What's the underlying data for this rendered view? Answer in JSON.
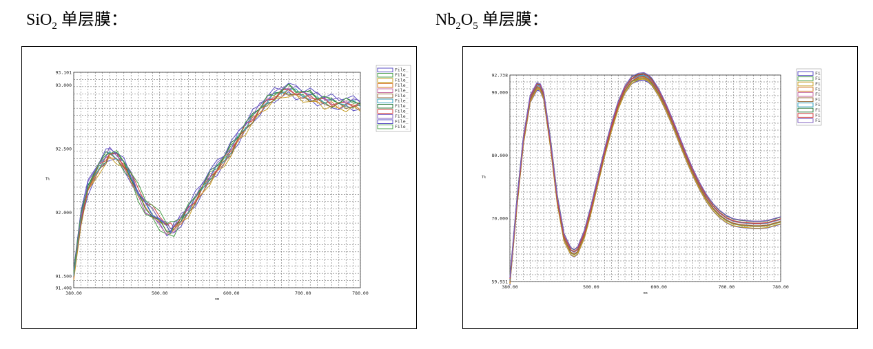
{
  "headings": {
    "left": {
      "pre": "SiO",
      "sub": "2",
      "post": " 单层膜："
    },
    "right": {
      "pre": "Nb",
      "sub1": "2",
      "mid": "O",
      "sub2": "5",
      "post": " 单层膜："
    }
  },
  "colors": {
    "series": [
      "#5b4fc4",
      "#4aa04a",
      "#c8a02a",
      "#d47a2a",
      "#c46aa0",
      "#9a6a3a",
      "#30a0c0",
      "#2a7a3a",
      "#d04040",
      "#8060c0"
    ]
  },
  "chart_data": [
    {
      "type": "line",
      "title": "",
      "xlabel": "nm",
      "ylabel": "T%",
      "xlim": [
        380,
        780
      ],
      "ylim": [
        91.408,
        93.101
      ],
      "x_ticks": [
        "380.00",
        "500.00",
        "600.00",
        "700.00",
        "780.00"
      ],
      "y_ticks": [
        "93.101",
        "93.000",
        "92.500",
        "92.000",
        "91.500",
        "91.408"
      ],
      "legend": [
        "File_",
        "File_",
        "File_",
        "File_",
        "File_",
        "File_",
        "File_",
        "File_",
        "File_",
        "File_",
        "File_",
        "File_"
      ],
      "legend_position": "top-right",
      "grid": true,
      "x": [
        380,
        390,
        400,
        415,
        425,
        430,
        440,
        450,
        460,
        470,
        480,
        490,
        500,
        510,
        515,
        520,
        530,
        540,
        550,
        560,
        570,
        580,
        590,
        600,
        610,
        620,
        630,
        640,
        650,
        660,
        670,
        680,
        690,
        700,
        710,
        720,
        730,
        740,
        750,
        760,
        770,
        780
      ],
      "series": [
        {
          "values": [
            91.52,
            91.95,
            92.2,
            92.36,
            92.43,
            92.47,
            92.44,
            92.38,
            92.28,
            92.15,
            92.06,
            92.0,
            91.94,
            91.88,
            91.86,
            91.88,
            91.95,
            92.02,
            92.1,
            92.2,
            92.28,
            92.35,
            92.42,
            92.5,
            92.6,
            92.68,
            92.75,
            92.82,
            92.88,
            92.92,
            92.95,
            92.97,
            92.95,
            92.93,
            92.92,
            92.9,
            92.88,
            92.87,
            92.86,
            92.86,
            92.86,
            92.85
          ]
        },
        {
          "values": [
            91.55,
            91.97,
            92.22,
            92.38,
            92.45,
            92.48,
            92.45,
            92.38,
            92.27,
            92.13,
            92.03,
            91.97,
            91.91,
            91.86,
            91.84,
            91.87,
            91.95,
            92.03,
            92.12,
            92.22,
            92.3,
            92.37,
            92.44,
            92.52,
            92.61,
            92.69,
            92.76,
            92.83,
            92.89,
            92.93,
            92.96,
            92.98,
            92.96,
            92.94,
            92.93,
            92.91,
            92.89,
            92.88,
            92.87,
            92.87,
            92.87,
            92.86
          ]
        },
        {
          "values": [
            91.5,
            91.93,
            92.18,
            92.34,
            92.41,
            92.45,
            92.43,
            92.37,
            92.29,
            92.17,
            92.08,
            92.02,
            91.96,
            91.9,
            91.88,
            91.89,
            91.94,
            92.01,
            92.09,
            92.18,
            92.26,
            92.33,
            92.4,
            92.48,
            92.58,
            92.66,
            92.73,
            92.8,
            92.86,
            92.9,
            92.93,
            92.95,
            92.93,
            92.91,
            92.9,
            92.88,
            92.86,
            92.85,
            92.84,
            92.84,
            92.84,
            92.83
          ]
        }
      ]
    },
    {
      "type": "line",
      "title": "",
      "xlabel": "nm",
      "ylabel": "T%",
      "xlim": [
        380,
        780
      ],
      "ylim": [
        59.931,
        92.738
      ],
      "x_ticks": [
        "380.00",
        "500.00",
        "600.00",
        "700.00",
        "780.00"
      ],
      "y_ticks": [
        "92.738",
        "90.000",
        "80.000",
        "70.000",
        "59.931"
      ],
      "legend": [
        "Fi",
        "Fi",
        "Fi",
        "Fi",
        "Fi",
        "Fi",
        "Fi",
        "Fi",
        "Fi",
        "Fi"
      ],
      "legend_position": "top-right",
      "grid": true,
      "x": [
        380,
        390,
        400,
        410,
        420,
        425,
        430,
        440,
        450,
        460,
        470,
        475,
        480,
        490,
        500,
        510,
        520,
        530,
        540,
        550,
        560,
        570,
        578,
        585,
        590,
        600,
        610,
        620,
        630,
        640,
        650,
        660,
        670,
        680,
        690,
        700,
        710,
        720,
        730,
        740,
        750,
        760,
        770,
        780
      ],
      "series": [
        {
          "values": [
            60.0,
            72.0,
            82.5,
            89.0,
            91.0,
            90.8,
            89.5,
            82.0,
            73.0,
            67.0,
            64.8,
            64.5,
            64.9,
            67.5,
            71.5,
            76.0,
            80.5,
            84.5,
            88.0,
            90.5,
            92.0,
            92.5,
            92.6,
            92.2,
            91.7,
            90.0,
            87.8,
            85.3,
            82.6,
            79.9,
            77.4,
            75.2,
            73.3,
            71.8,
            70.7,
            69.9,
            69.4,
            69.2,
            69.1,
            69.0,
            69.0,
            69.1,
            69.4,
            69.7
          ]
        },
        {
          "values": [
            60.2,
            72.4,
            82.8,
            89.2,
            91.1,
            90.9,
            89.7,
            82.4,
            73.4,
            67.3,
            65.0,
            64.7,
            65.1,
            67.8,
            71.8,
            76.3,
            80.8,
            84.8,
            88.3,
            90.7,
            92.2,
            92.6,
            92.7,
            92.3,
            91.8,
            90.2,
            88.0,
            85.5,
            82.8,
            80.1,
            77.6,
            75.4,
            73.5,
            72.0,
            70.9,
            70.1,
            69.6,
            69.4,
            69.3,
            69.2,
            69.2,
            69.3,
            69.6,
            69.9
          ]
        },
        {
          "values": [
            59.9,
            71.6,
            82.2,
            88.8,
            90.9,
            90.7,
            89.3,
            81.6,
            72.6,
            66.7,
            64.6,
            64.3,
            64.7,
            67.2,
            71.2,
            75.7,
            80.2,
            84.2,
            87.7,
            90.3,
            91.8,
            92.4,
            92.5,
            92.1,
            91.5,
            89.8,
            87.6,
            85.1,
            82.4,
            79.7,
            77.2,
            75.0,
            73.1,
            71.6,
            70.5,
            69.7,
            69.2,
            69.0,
            68.9,
            68.8,
            68.8,
            68.9,
            69.2,
            69.5
          ]
        }
      ]
    }
  ]
}
